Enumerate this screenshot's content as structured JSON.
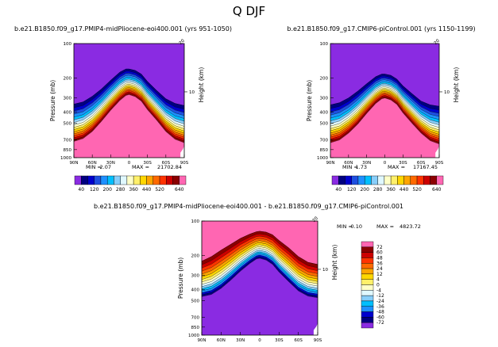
{
  "figure": {
    "title": "Q DJF"
  },
  "colors": {
    "neutral_fill": "#ffffc8",
    "high_fill": "#ff66b2",
    "low_fill": "#8a2be2"
  },
  "chart_data": [
    {
      "type": "heatmap",
      "title": "b.e21.B1850.f09_g17.PMIP4-midPliocene-eoi400.001  (yrs 951-1050)",
      "ylabel": "Pressure (mb)",
      "ylabel_right": "Height (km)",
      "xticks": [
        "90N",
        "60N",
        "30N",
        "0",
        "30S",
        "60S",
        "90S"
      ],
      "yticks": [
        "100",
        "200",
        "300",
        "400",
        "500",
        "700",
        "850",
        "1000"
      ],
      "yticks_right": [
        "10"
      ],
      "top_marker": "20",
      "ylim": [
        1000,
        100
      ],
      "xlim": [
        90,
        -90
      ],
      "min_label": "MIN =",
      "min": "2.07",
      "max_label": "MAX =",
      "max": "21702.84",
      "contour_envelope_pressure_mb": {
        "lat": [
          90,
          75,
          60,
          45,
          30,
          15,
          5,
          0,
          -10,
          -20,
          -30,
          -45,
          -60,
          -75,
          -90
        ],
        "p40": [
          340,
          325,
          290,
          250,
          210,
          178,
          167,
          167,
          172,
          185,
          215,
          258,
          305,
          335,
          350
        ],
        "p640": [
          720,
          680,
          590,
          480,
          385,
          315,
          285,
          280,
          292,
          320,
          380,
          470,
          590,
          690,
          740
        ]
      }
    },
    {
      "type": "heatmap",
      "title": "b.e21.B1850.f09_g17.CMIP6-piControl.001  (yrs 1150-1199)",
      "ylabel": "Pressure (mb)",
      "ylabel_right": "Height (km)",
      "xticks": [
        "90N",
        "60N",
        "30N",
        "0",
        "30S",
        "60S",
        "90S"
      ],
      "yticks": [
        "100",
        "200",
        "300",
        "400",
        "500",
        "700",
        "850",
        "1000"
      ],
      "yticks_right": [
        "10"
      ],
      "top_marker": "20",
      "ylim": [
        1000,
        100
      ],
      "xlim": [
        90,
        -90
      ],
      "min_label": "MIN =",
      "min": "1.73",
      "max_label": "MAX =",
      "max": "17167.45",
      "contour_envelope_pressure_mb": {
        "lat": [
          90,
          75,
          60,
          45,
          30,
          15,
          5,
          0,
          -10,
          -20,
          -30,
          -45,
          -60,
          -75,
          -90
        ],
        "p40": [
          345,
          330,
          300,
          262,
          225,
          195,
          185,
          185,
          190,
          205,
          235,
          275,
          320,
          345,
          355
        ],
        "p640": [
          740,
          700,
          610,
          510,
          410,
          335,
          305,
          300,
          312,
          342,
          405,
          500,
          610,
          710,
          760
        ]
      }
    },
    {
      "type": "heatmap",
      "title": "b.e21.B1850.f09_g17.PMIP4-midPliocene-eoi400.001  -  b.e21.B1850.f09_g17.CMIP6-piControl.001",
      "ylabel": "Pressure (mb)",
      "ylabel_right": "Height (km)",
      "xticks": [
        "90N",
        "60N",
        "30N",
        "0",
        "30S",
        "60S",
        "90S"
      ],
      "yticks": [
        "100",
        "200",
        "300",
        "400",
        "500",
        "700",
        "850",
        "1000"
      ],
      "yticks_right": [
        "10"
      ],
      "top_marker": "20",
      "ylim": [
        1000,
        100
      ],
      "xlim": [
        90,
        -90
      ],
      "min_label": "MIN =",
      "min": "0.10",
      "max_label": "MAX =",
      "max": "4823.72",
      "contour_envelope_pressure_mb": {
        "lat": [
          90,
          75,
          60,
          45,
          30,
          15,
          5,
          0,
          -10,
          -20,
          -30,
          -45,
          -60,
          -75,
          -90
        ],
        "p4": [
          225,
          205,
          180,
          160,
          142,
          130,
          124,
          123,
          125,
          132,
          148,
          172,
          205,
          230,
          240
        ],
        "p72": [
          460,
          440,
          390,
          330,
          275,
          235,
          215,
          212,
          220,
          240,
          280,
          340,
          410,
          455,
          470
        ]
      }
    }
  ],
  "colorbars": [
    {
      "orientation": "horizontal",
      "labels": [
        "40",
        "120",
        "200",
        "280",
        "360",
        "440",
        "520",
        "640"
      ],
      "levels": [
        40,
        80,
        120,
        160,
        200,
        240,
        280,
        320,
        360,
        400,
        440,
        480,
        520,
        560,
        600,
        640
      ],
      "colors": [
        "#8a2be2",
        "#000080",
        "#0000cd",
        "#1e4fe0",
        "#1e90ff",
        "#00bfff",
        "#87cefa",
        "#e0f8ff",
        "#ffffc8",
        "#fff06a",
        "#ffd700",
        "#ffa500",
        "#ff6a00",
        "#ff3300",
        "#cc0000",
        "#8b0000",
        "#ff66b2"
      ]
    },
    {
      "orientation": "horizontal",
      "labels": [
        "40",
        "120",
        "200",
        "280",
        "360",
        "440",
        "520",
        "640"
      ],
      "levels": [
        40,
        80,
        120,
        160,
        200,
        240,
        280,
        320,
        360,
        400,
        440,
        480,
        520,
        560,
        600,
        640
      ],
      "colors": [
        "#8a2be2",
        "#000080",
        "#0000cd",
        "#1e4fe0",
        "#1e90ff",
        "#00bfff",
        "#87cefa",
        "#e0f8ff",
        "#ffffc8",
        "#fff06a",
        "#ffd700",
        "#ffa500",
        "#ff6a00",
        "#ff3300",
        "#cc0000",
        "#8b0000",
        "#ff66b2"
      ]
    },
    {
      "orientation": "vertical",
      "labels": [
        "72",
        "60",
        "48",
        "36",
        "24",
        "12",
        "4",
        "0",
        "-4",
        "-12",
        "-24",
        "-36",
        "-48",
        "-60",
        "-72"
      ],
      "levels": [
        72,
        60,
        48,
        36,
        24,
        12,
        4,
        0,
        -4,
        -12,
        -24,
        -36,
        -48,
        -60,
        -72
      ],
      "colors": [
        "#ff66b2",
        "#8b0000",
        "#cc0000",
        "#ff3300",
        "#ff6a00",
        "#ffa500",
        "#ffd700",
        "#fff06a",
        "#ffffc8",
        "#e0f8ff",
        "#87cefa",
        "#00bfff",
        "#1e90ff",
        "#0000cd",
        "#000080",
        "#8a2be2"
      ]
    }
  ]
}
